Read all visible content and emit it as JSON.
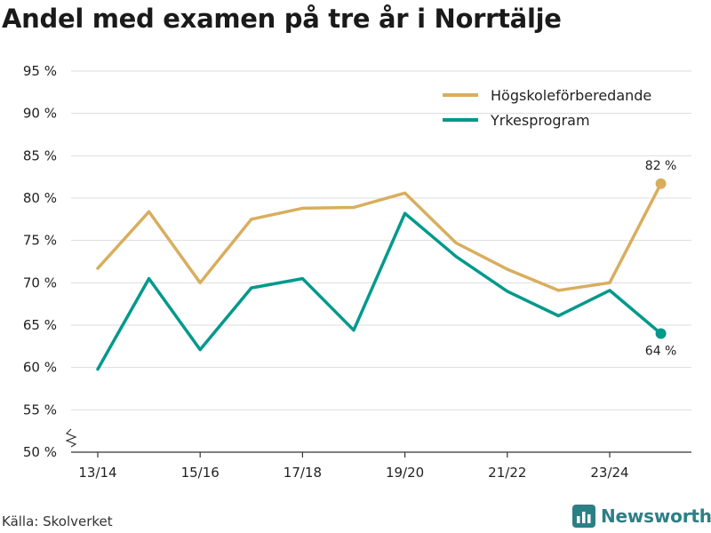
{
  "title": "Andel med examen på tre år i Norrtälje",
  "source": "Källa: Skolverket",
  "brand": "Newsworthy",
  "colors": {
    "series1": "#d8ae5e",
    "series2": "#00998c",
    "grid": "#dddddd",
    "brand": "#2d7f86"
  },
  "chart_data": {
    "type": "line",
    "title": "Andel med examen på tre år i Norrtälje",
    "xlabel": "",
    "ylabel": "",
    "ylim": [
      50,
      95
    ],
    "yticks": [
      50,
      55,
      60,
      65,
      70,
      75,
      80,
      85,
      90,
      95
    ],
    "ytick_labels": [
      "50 %",
      "55 %",
      "60 %",
      "65 %",
      "70 %",
      "75 %",
      "80 %",
      "85 %",
      "90 %",
      "95 %"
    ],
    "categories": [
      "13/14",
      "14/15",
      "15/16",
      "16/17",
      "17/18",
      "18/19",
      "19/20",
      "20/21",
      "21/22",
      "22/23",
      "23/24",
      "24/25"
    ],
    "xtick_labels": [
      "13/14",
      "15/16",
      "17/18",
      "19/20",
      "21/22",
      "23/24"
    ],
    "xtick_indices": [
      0,
      2,
      4,
      6,
      8,
      10
    ],
    "legend_position": "top-right",
    "grid": true,
    "series": [
      {
        "name": "Högskoleförberedande",
        "color": "#d8ae5e",
        "values": [
          71.7,
          78.4,
          70.0,
          77.5,
          78.8,
          78.9,
          80.6,
          74.7,
          71.6,
          69.1,
          70.0,
          81.7
        ],
        "end_label": "82 %"
      },
      {
        "name": "Yrkesprogram",
        "color": "#00998c",
        "values": [
          59.8,
          70.5,
          62.1,
          69.4,
          70.5,
          64.4,
          78.2,
          73.1,
          69.0,
          66.1,
          69.1,
          64.0
        ],
        "end_label": "64 %"
      }
    ]
  }
}
